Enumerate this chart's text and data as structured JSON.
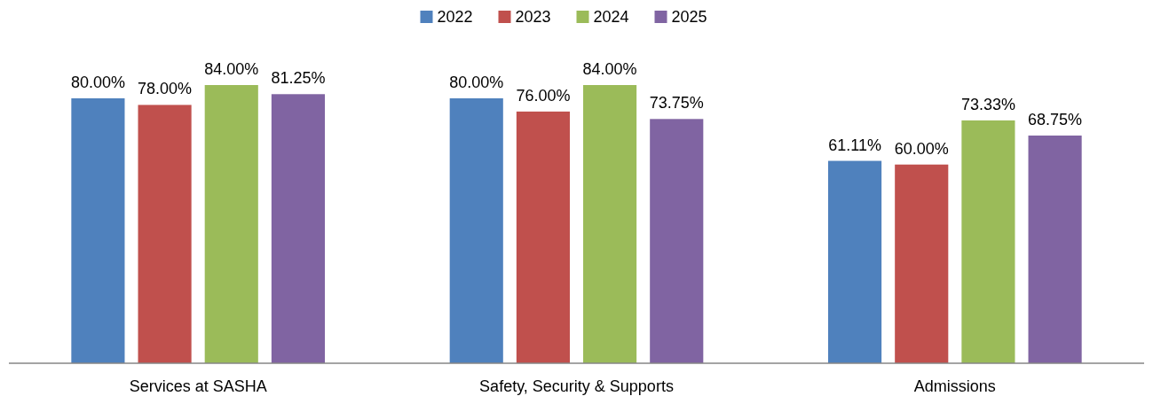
{
  "chart_data": {
    "type": "bar",
    "categories": [
      "Services at SASHA",
      "Safety, Security & Supports",
      "Admissions"
    ],
    "tick_labels": "x",
    "legend": "top",
    "series": [
      {
        "name": "2022",
        "color": "#4f81bd",
        "values": [
          80,
          80,
          61.11
        ],
        "value_labels": [
          "80.00%",
          "80.00%",
          "61.11%"
        ]
      },
      {
        "name": "2023",
        "color": "#c0504d",
        "values": [
          78,
          76,
          60
        ],
        "value_labels": [
          "78.00%",
          "76.00%",
          "60.00%"
        ]
      },
      {
        "name": "2024",
        "color": "#9bbb59",
        "values": [
          84,
          84,
          73.33
        ],
        "value_labels": [
          "84.00%",
          "84.00%",
          "73.33%"
        ]
      },
      {
        "name": "2025",
        "color": "#8064a2",
        "values": [
          81.25,
          73.75,
          68.75
        ],
        "value_labels": [
          "81.25%",
          "73.75%",
          "68.75%"
        ]
      }
    ]
  }
}
